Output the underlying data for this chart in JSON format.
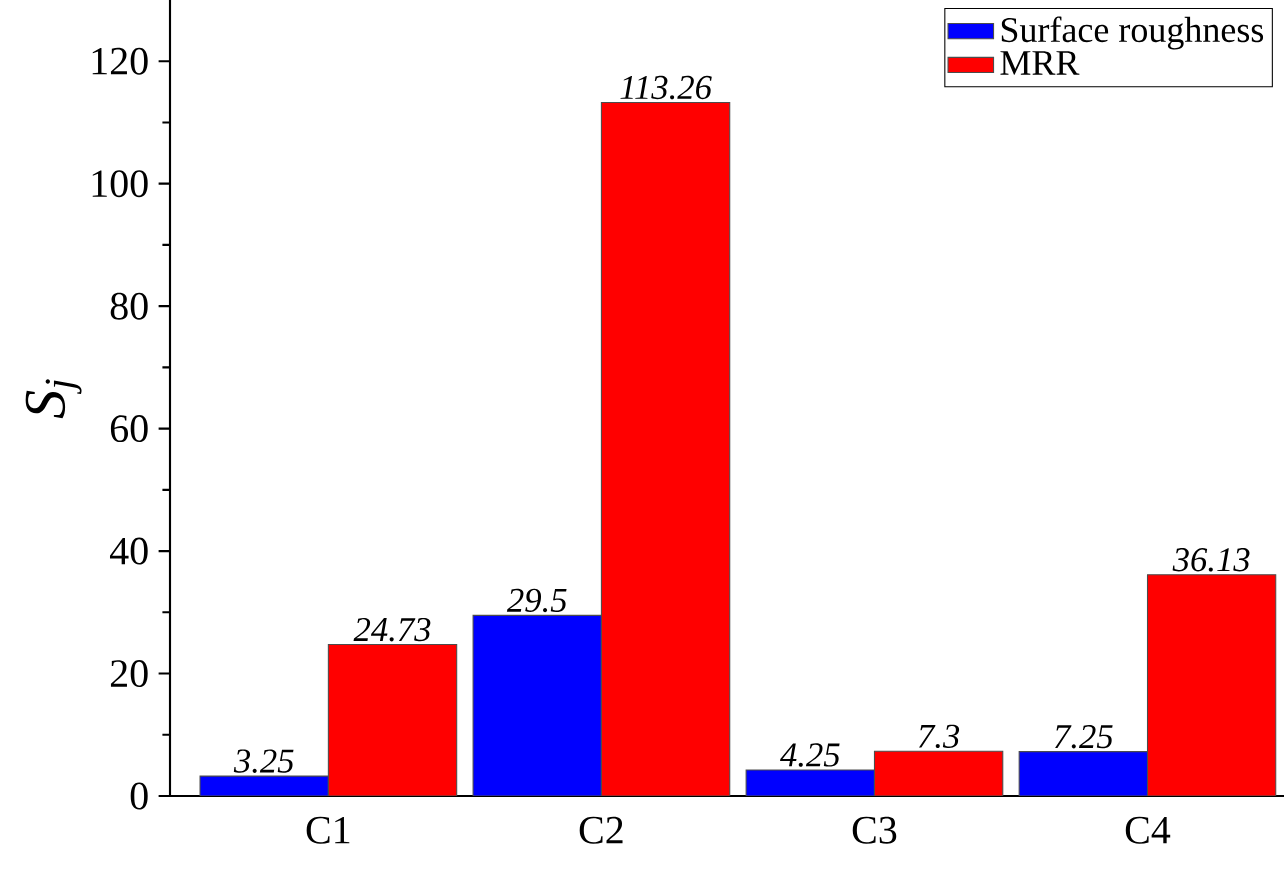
{
  "chart_data": {
    "type": "bar",
    "ylabel": "S$_{j}$",
    "categories": [
      "C1",
      "C2",
      "C3",
      "C4"
    ],
    "series": [
      {
        "name": "Surface roughness",
        "color": "#0000ff",
        "values": [
          3.25,
          29.5,
          4.25,
          7.25
        ]
      },
      {
        "name": "MRR",
        "color": "#ff0000",
        "values": [
          24.73,
          113.26,
          7.3,
          36.13
        ]
      }
    ],
    "ylim": [
      0,
      130
    ],
    "yticks": [
      0,
      20,
      40,
      60,
      80,
      100,
      120
    ],
    "data_labels": true,
    "legend": "top right",
    "grid": false
  }
}
